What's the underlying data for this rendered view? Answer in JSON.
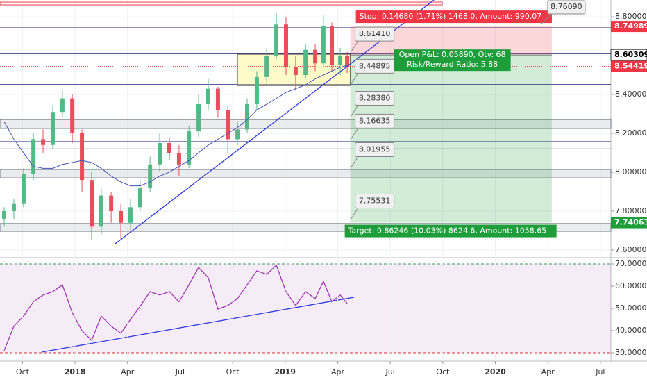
{
  "chart_data": [
    {
      "type": "candlestick",
      "x": [
        2017.663,
        2017.709,
        2017.755,
        2017.802,
        2017.848,
        2017.894,
        2017.94,
        2017.987,
        2018.033,
        2018.079,
        2018.125,
        2018.172,
        2018.218,
        2018.264,
        2018.31,
        2018.357,
        2018.403,
        2018.449,
        2018.495,
        2018.542,
        2018.588,
        2018.634,
        2018.68,
        2018.727,
        2018.773,
        2018.819,
        2018.865,
        2018.912,
        2018.958,
        2019.004,
        2019.05,
        2019.097,
        2019.143,
        2019.182,
        2019.222,
        2019.262,
        2019.295
      ],
      "open": [
        7.76,
        7.8,
        7.84,
        7.99,
        8.17,
        8.14,
        8.31,
        8.38,
        8.2,
        7.96,
        7.72,
        7.88,
        7.8,
        7.74,
        7.82,
        7.92,
        8.04,
        8.15,
        8.1,
        8.04,
        8.21,
        8.35,
        8.43,
        8.32,
        8.17,
        8.22,
        8.35,
        8.49,
        8.6,
        8.76,
        8.54,
        8.5,
        8.63,
        8.56,
        8.75,
        8.55,
        8.6
      ],
      "high": [
        7.82,
        7.86,
        8.02,
        8.2,
        8.22,
        8.34,
        8.42,
        8.4,
        8.22,
        8.0,
        7.92,
        7.9,
        7.84,
        7.86,
        7.96,
        8.08,
        8.2,
        8.18,
        8.14,
        8.24,
        8.4,
        8.48,
        8.44,
        8.34,
        8.26,
        8.38,
        8.52,
        8.64,
        8.82,
        8.8,
        8.6,
        8.66,
        8.66,
        8.81,
        8.77,
        8.64,
        8.62
      ],
      "low": [
        7.72,
        7.76,
        7.82,
        7.96,
        8.1,
        8.12,
        8.28,
        8.15,
        7.9,
        7.65,
        7.68,
        7.74,
        7.66,
        7.7,
        7.8,
        7.9,
        8.0,
        8.06,
        7.98,
        8.02,
        8.18,
        8.32,
        8.28,
        8.1,
        8.14,
        8.2,
        8.32,
        8.46,
        8.58,
        8.5,
        8.42,
        8.48,
        8.52,
        8.54,
        8.52,
        8.5,
        8.51
      ],
      "close": [
        7.8,
        7.84,
        7.99,
        8.17,
        8.14,
        8.31,
        8.38,
        8.2,
        7.96,
        7.72,
        7.88,
        7.8,
        7.74,
        7.82,
        7.92,
        8.04,
        8.15,
        8.1,
        8.04,
        8.21,
        8.35,
        8.43,
        8.32,
        8.17,
        8.22,
        8.35,
        8.49,
        8.6,
        8.76,
        8.54,
        8.5,
        8.63,
        8.56,
        8.75,
        8.55,
        8.6,
        8.54
      ],
      "moving_average": [
        8.26,
        8.17,
        8.1,
        8.03,
        8.02,
        8.02,
        8.04,
        8.05,
        8.06,
        8.05,
        8.02,
        7.98,
        7.95,
        7.93,
        7.93,
        7.95,
        7.98,
        8.0,
        8.03,
        8.06,
        8.1,
        8.14,
        8.17,
        8.2,
        8.23,
        8.27,
        8.32,
        8.35,
        8.38,
        8.41,
        8.43,
        8.45,
        8.48,
        8.5,
        8.52,
        8.54,
        8.55
      ],
      "colors": {
        "up": "#53b987",
        "down": "#eb4d5c",
        "ma": "#3f51b5",
        "level": "#1a237e",
        "zone": "#d1d4dc",
        "trend": "#2f3be0",
        "stop": "#f23645",
        "target": "#1e9e3a"
      },
      "xlim": [
        2017.643,
        2020.55
      ],
      "ylim": [
        7.564,
        8.886
      ],
      "yticks": [
        {
          "value": 7.6,
          "label": "7.60000"
        },
        {
          "value": 7.8,
          "label": "7.80000"
        },
        {
          "value": 8.0,
          "label": "8.00000"
        },
        {
          "value": 8.2,
          "label": "8.20000"
        },
        {
          "value": 8.4,
          "label": "8.40000"
        },
        {
          "value": 8.6,
          "label": "8.60000"
        },
        {
          "value": 8.8,
          "label": "8.80000"
        }
      ],
      "grid": true,
      "levels": [
        8.743,
        8.61,
        8.45,
        8.157,
        8.12
      ],
      "zones": [
        [
          8.225,
          8.271
        ],
        [
          7.971,
          8.014
        ],
        [
          7.696,
          7.736
        ]
      ],
      "resistance": 8.868,
      "current": 8.54419,
      "trendline": {
        "x": [
          2018.188,
          2019.708
        ],
        "y": [
          7.629,
          8.886
        ]
      },
      "highlight_box": {
        "x": [
          2018.773,
          2019.31
        ],
        "y": [
          8.446,
          8.607
        ]
      },
      "fib_x": 2019.31,
      "fib_labels": [
        {
          "value": 8.6141,
          "label": "8.61410"
        },
        8.44895,
        {
          "value": 8.2838,
          "label": "8.28380"
        },
        8.16635,
        8.01955,
        7.75531
      ],
      "position": {
        "x": [
          2019.31,
          2020.269
        ],
        "entry": 8.60309,
        "stop": 8.74989,
        "target": 7.74063,
        "stop_label": "Stop: 0.14680 (1.71%) 1468.0, Amount: 990.07",
        "pnl_label": "Open P&L: 0.05890, Qty: 68",
        "ratio_label": "Risk/Reward Ratio: 5.88",
        "target_label": "Target: 0.86246 (10.03%) 8624.6, Amount: 1058.65"
      },
      "callout": {
        "value": 8.7609,
        "label": "8.76090"
      },
      "axis_tags": [
        {
          "value": 8.74989,
          "color": "#f23645"
        },
        {
          "value": 8.60309,
          "color": "#ffffff"
        },
        {
          "value": 8.54419,
          "color": "#f23645"
        },
        {
          "value": 7.74063,
          "color": "#1e9e3a"
        }
      ]
    },
    {
      "type": "line",
      "x": [
        2017.663,
        2017.709,
        2017.755,
        2017.802,
        2017.848,
        2017.894,
        2017.94,
        2017.987,
        2018.033,
        2018.079,
        2018.125,
        2018.172,
        2018.218,
        2018.264,
        2018.31,
        2018.357,
        2018.403,
        2018.449,
        2018.495,
        2018.542,
        2018.588,
        2018.634,
        2018.68,
        2018.727,
        2018.773,
        2018.819,
        2018.865,
        2018.912,
        2018.958,
        2019.004,
        2019.05,
        2019.097,
        2019.143,
        2019.182,
        2019.222,
        2019.262,
        2019.295
      ],
      "values": [
        31,
        42,
        46.5,
        53,
        56,
        57.5,
        60.6,
        48,
        40,
        35.6,
        46.5,
        42,
        38.8,
        45,
        51,
        57.5,
        56,
        57.5,
        53,
        60.6,
        68.4,
        63.8,
        49.7,
        51.3,
        54.4,
        60.6,
        66.9,
        65.3,
        69.4,
        57.5,
        51.3,
        57.5,
        54.4,
        62.2,
        53,
        56,
        52.2
      ],
      "color": "#9c27b0",
      "fill": "rgba(156,39,176,0.09)",
      "xlim": [
        2017.643,
        2020.55
      ],
      "ylim": [
        26.25,
        72.5
      ],
      "yticks": [
        {
          "value": 30,
          "label": "30.0000"
        },
        {
          "value": 40,
          "label": "40.0000"
        },
        {
          "value": 50,
          "label": "50.0000"
        },
        {
          "value": 60,
          "label": "60.0000"
        },
        {
          "value": 70,
          "label": "70.0000"
        }
      ],
      "band": [
        30,
        70
      ],
      "trendline": {
        "x": [
          2017.841,
          2019.328
        ],
        "y": [
          30.3,
          55
        ]
      },
      "xticks": [
        {
          "value": 2017.75,
          "label": "Oct"
        },
        2018,
        {
          "value": 2018.25,
          "label": "Apr"
        },
        {
          "value": 2018.5,
          "label": "Jul"
        },
        {
          "value": 2018.75,
          "label": "Oct"
        },
        2019,
        {
          "value": 2019.25,
          "label": "Apr"
        },
        {
          "value": 2019.5,
          "label": "Jul"
        },
        {
          "value": 2019.75,
          "label": "Oct"
        },
        2020,
        {
          "value": 2020.25,
          "label": "Apr"
        },
        {
          "value": 2020.5,
          "label": "Jul"
        }
      ]
    }
  ]
}
